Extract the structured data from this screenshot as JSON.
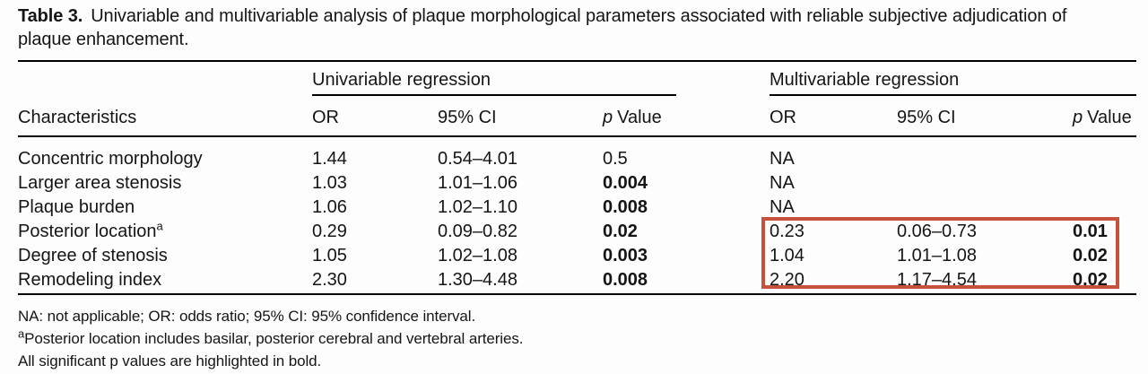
{
  "title": {
    "prefix": "Table 3.",
    "line1": "Univariable and multivariable analysis of plaque morphological parameters associated with reliable subjective adjudication of",
    "line2": "plaque enhancement."
  },
  "table": {
    "char_header": "Characteristics",
    "groups": {
      "uni": "Univariable regression",
      "multi": "Multivariable regression"
    },
    "col_headers": {
      "or": "OR",
      "ci": "95% CI",
      "p_italic": "p",
      "p_rest": "Value"
    },
    "rows": [
      {
        "label": "Concentric morphology",
        "sup": "",
        "uni": {
          "or": "1.44",
          "ci": "0.54–4.01",
          "p": "0.5"
        },
        "multi": {
          "or": "NA",
          "ci": "",
          "p": ""
        }
      },
      {
        "label": "Larger area stenosis",
        "sup": "",
        "uni": {
          "or": "1.03",
          "ci": "1.01–1.06",
          "p": "0.004"
        },
        "multi": {
          "or": "NA",
          "ci": "",
          "p": ""
        }
      },
      {
        "label": "Plaque burden",
        "sup": "",
        "uni": {
          "or": "1.06",
          "ci": "1.02–1.10",
          "p": "0.008"
        },
        "multi": {
          "or": "NA",
          "ci": "",
          "p": ""
        }
      },
      {
        "label": "Posterior location",
        "sup": "a",
        "uni": {
          "or": "0.29",
          "ci": "0.09–0.82",
          "p": "0.02"
        },
        "multi": {
          "or": "0.23",
          "ci": "0.06–0.73",
          "p": "0.01"
        }
      },
      {
        "label": "Degree of stenosis",
        "sup": "",
        "uni": {
          "or": "1.05",
          "ci": "1.02–1.08",
          "p": "0.003"
        },
        "multi": {
          "or": "1.04",
          "ci": "1.01–1.08",
          "p": "0.02"
        }
      },
      {
        "label": "Remodeling index",
        "sup": "",
        "uni": {
          "or": "2.30",
          "ci": "1.30–4.48",
          "p": "0.008"
        },
        "multi": {
          "or": "2.20",
          "ci": "1.17–4.54",
          "p": "0.02"
        }
      }
    ]
  },
  "footnotes": {
    "line1": "NA: not applicable; OR: odds ratio; 95% CI: 95% confidence interval.",
    "line2_sup": "a",
    "line2": "Posterior location includes basilar, posterior cerebral and vertebral arteries.",
    "line3": "All significant p values are highlighted in bold."
  },
  "highlight_color": "#c4523c"
}
